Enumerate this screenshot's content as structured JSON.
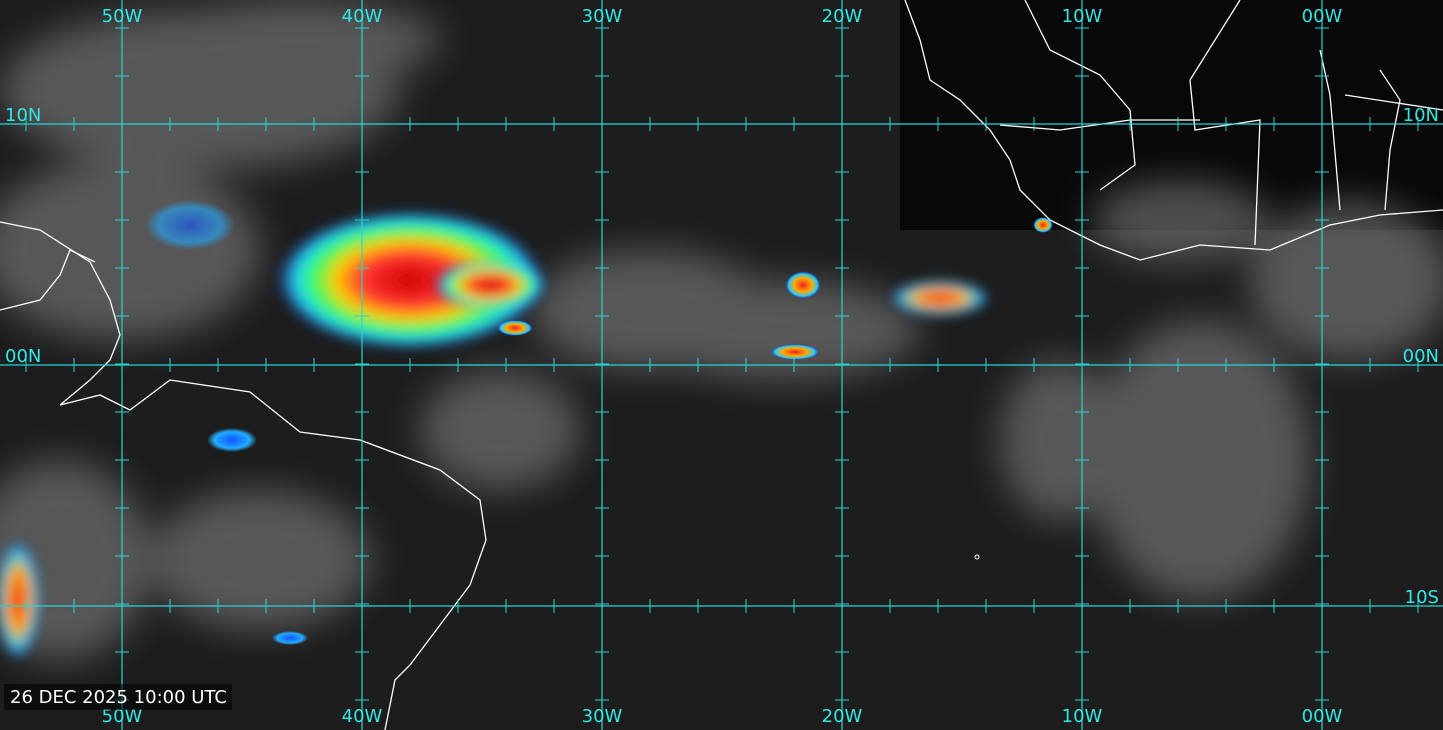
{
  "longitude_labels": [
    "50W",
    "40W",
    "30W",
    "20W",
    "10W",
    "00W"
  ],
  "latitude_labels": [
    "10N",
    "00N",
    "10S"
  ],
  "timestamp": "26 DEC 2025 10:00 UTC"
}
